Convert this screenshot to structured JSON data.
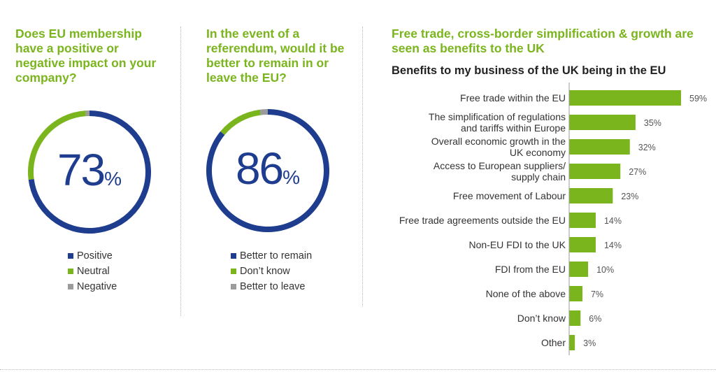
{
  "colors": {
    "accent_green": "#7ab51d",
    "navy": "#1f3d8f",
    "grey": "#9b9b9b",
    "bar_green": "#7ab51d"
  },
  "panel1": {
    "heading": [
      "Does EU membership",
      "have a positive or",
      "negative impact on your",
      "company?"
    ],
    "value": "73",
    "pct_sign": "%",
    "legend": [
      {
        "label": "Positive",
        "color": "#1f3d8f"
      },
      {
        "label": "Neutral",
        "color": "#7ab51d"
      },
      {
        "label": "Negative",
        "color": "#9b9b9b"
      }
    ]
  },
  "panel2": {
    "heading": [
      "In the event of a",
      "referendum, would it be",
      "better to remain in or",
      "leave the EU?"
    ],
    "value": "86",
    "pct_sign": "%",
    "legend": [
      {
        "label": "Better to remain",
        "color": "#1f3d8f"
      },
      {
        "label": "Don’t know",
        "color": "#7ab51d"
      },
      {
        "label": "Better to leave",
        "color": "#9b9b9b"
      }
    ]
  },
  "panel3": {
    "heading": [
      "Free trade, cross-border simplification & growth are",
      "seen as benefits to the UK"
    ],
    "chart_title": "Benefits to my business of the UK being in the EU"
  },
  "chart_data": [
    {
      "type": "pie",
      "categories": [
        "Positive",
        "Neutral",
        "Negative"
      ],
      "values": [
        73,
        26,
        1
      ],
      "center_label": "73%"
    },
    {
      "type": "pie",
      "categories": [
        "Better to remain",
        "Don’t know",
        "Better to leave"
      ],
      "values": [
        86,
        12,
        2
      ],
      "center_label": "86%"
    },
    {
      "type": "bar",
      "orientation": "horizontal",
      "title": "Benefits to my business of the UK being in the EU",
      "categories": [
        [
          "Free trade within the EU"
        ],
        [
          "The simplification of regulations",
          "and tariffs within Europe"
        ],
        [
          "Overall economic growth in the",
          "UK economy"
        ],
        [
          "Access to European suppliers/",
          "supply chain"
        ],
        [
          "Free movement of Labour"
        ],
        [
          "Free trade agreements outside the EU"
        ],
        [
          "Non-EU FDI to the UK"
        ],
        [
          "FDI from the EU"
        ],
        [
          "None of the above"
        ],
        [
          "Don’t know"
        ],
        [
          "Other"
        ]
      ],
      "values": [
        59,
        35,
        32,
        27,
        23,
        14,
        14,
        10,
        7,
        6,
        3
      ],
      "value_labels": [
        "59%",
        "35%",
        "32%",
        "27%",
        "23%",
        "14%",
        "14%",
        "10%",
        "7%",
        "6%",
        "3%"
      ],
      "xlim": [
        0,
        59
      ],
      "grid": false
    }
  ]
}
